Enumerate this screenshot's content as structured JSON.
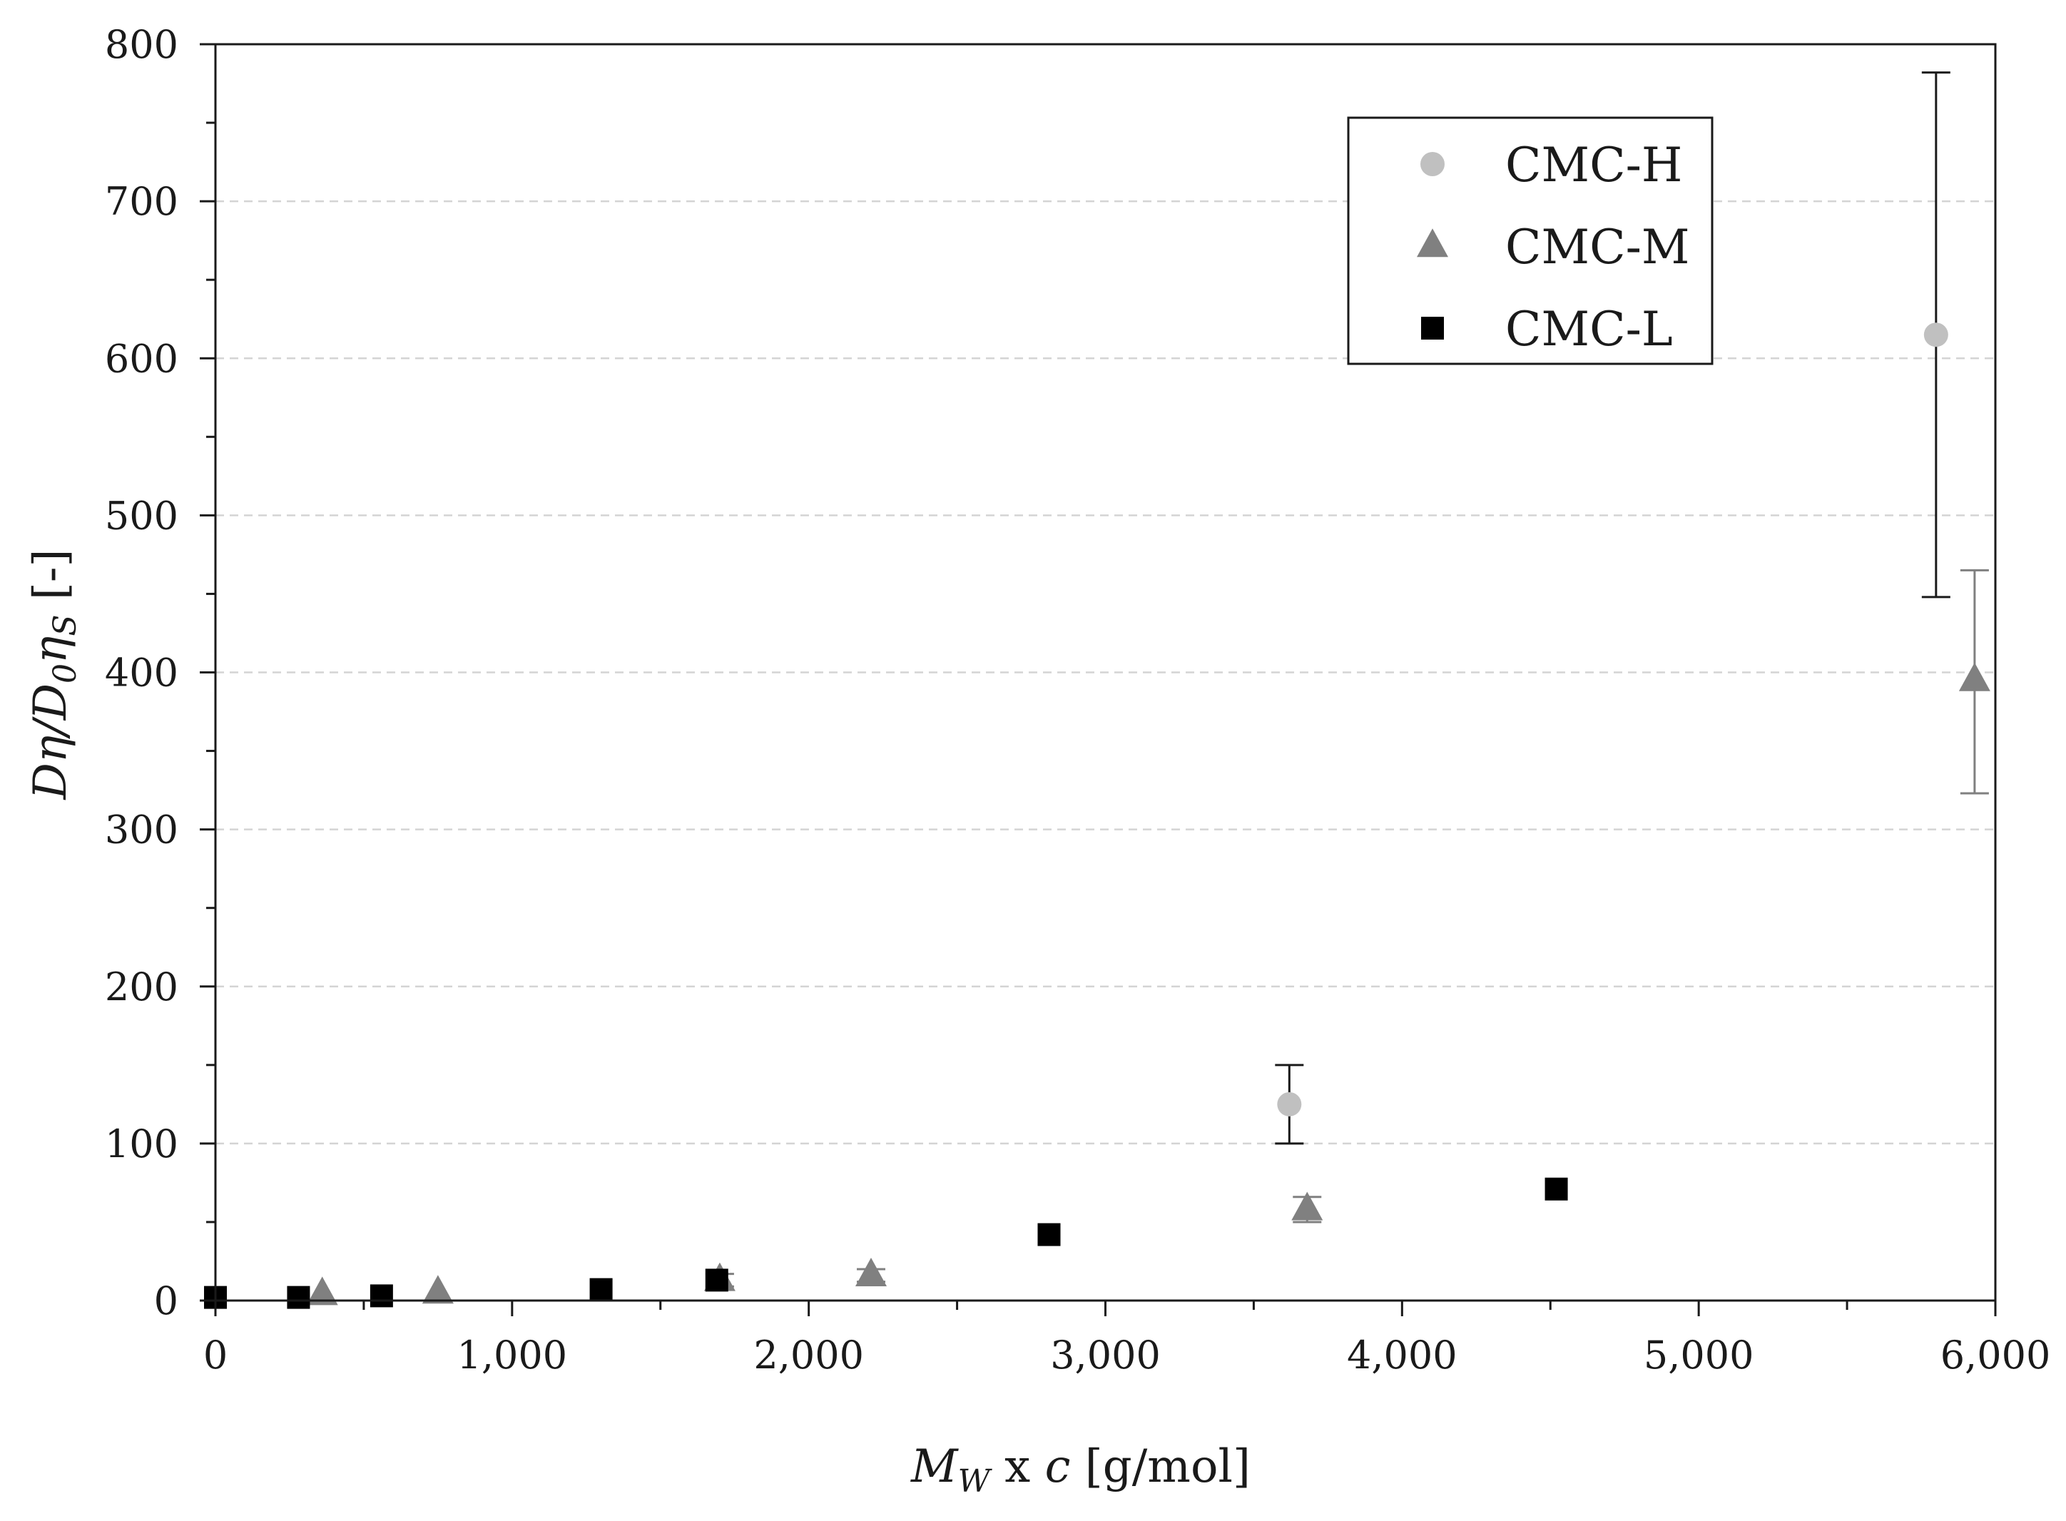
{
  "chart_data": {
    "type": "scatter",
    "title": "",
    "xlabel": {
      "main": "M",
      "sub": "W",
      "rest": " x ",
      "var": "c",
      "unit": " [g/mol]"
    },
    "ylabel": {
      "part1": "Dη/D",
      "sub0": "0",
      "part2": "η",
      "subS": "S",
      "unit": " [-]"
    },
    "xlim": [
      0,
      6000
    ],
    "ylim": [
      0,
      800
    ],
    "x_ticks": [
      0,
      1000,
      2000,
      3000,
      4000,
      5000,
      6000
    ],
    "x_tick_labels": [
      "0",
      "1,000",
      "2,000",
      "3,000",
      "4,000",
      "5,000",
      "6,000"
    ],
    "y_ticks": [
      0,
      100,
      200,
      300,
      400,
      500,
      600,
      700,
      800
    ],
    "y_tick_labels": [
      "0",
      "100",
      "200",
      "300",
      "400",
      "500",
      "600",
      "700",
      "800"
    ],
    "x_minor_step": 500,
    "y_minor_step": 50,
    "grid": {
      "y_major_dashed": true
    },
    "legend_position": "top-right",
    "series": [
      {
        "name": "CMC-H",
        "marker": "circle",
        "color": "#c0c0c0",
        "errorbar_color": "#1a1a1a",
        "points": [
          {
            "x": 3620,
            "y": 125,
            "err_low": 100,
            "err_high": 150
          },
          {
            "x": 5800,
            "y": 615,
            "err_low": 448,
            "err_high": 782
          }
        ]
      },
      {
        "name": "CMC-M",
        "marker": "triangle",
        "color": "#808080",
        "errorbar_color": "#808080",
        "points": [
          {
            "x": 360,
            "y": 4
          },
          {
            "x": 750,
            "y": 5
          },
          {
            "x": 1700,
            "y": 13,
            "err_low": 9,
            "err_high": 17
          },
          {
            "x": 2210,
            "y": 16,
            "err_low": 12,
            "err_high": 20
          },
          {
            "x": 3680,
            "y": 58,
            "err_low": 50,
            "err_high": 66
          },
          {
            "x": 5930,
            "y": 395,
            "err_low": 323,
            "err_high": 465
          }
        ]
      },
      {
        "name": "CMC-L",
        "marker": "square",
        "color": "#000000",
        "errorbar_color": "#000000",
        "points": [
          {
            "x": 0,
            "y": 2
          },
          {
            "x": 280,
            "y": 2
          },
          {
            "x": 560,
            "y": 3
          },
          {
            "x": 1300,
            "y": 7
          },
          {
            "x": 1690,
            "y": 13
          },
          {
            "x": 2810,
            "y": 42
          },
          {
            "x": 4520,
            "y": 71
          }
        ]
      }
    ]
  }
}
